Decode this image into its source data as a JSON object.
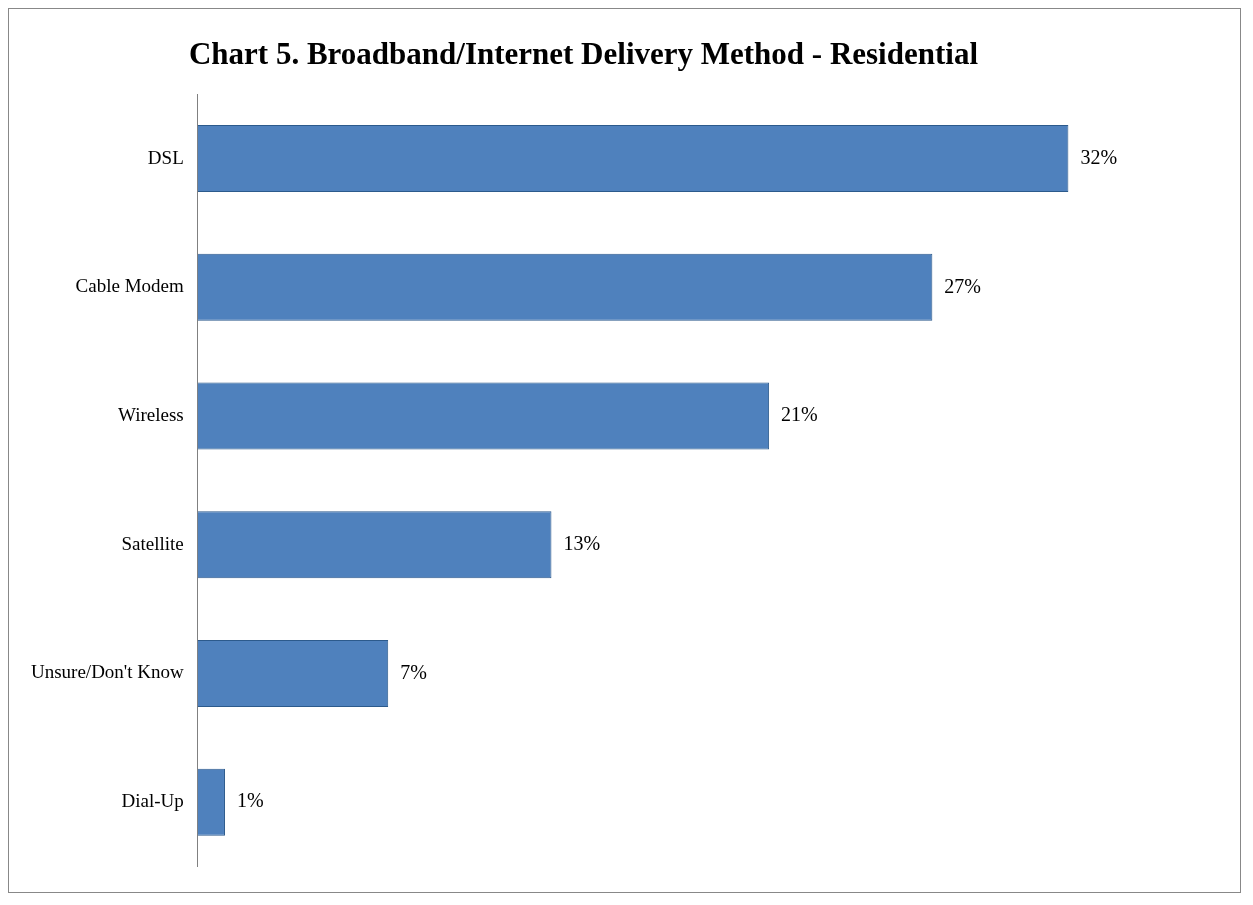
{
  "chart_data": {
    "type": "bar",
    "orientation": "horizontal",
    "title": "Chart 5. Broadband/Internet Delivery Method - Residential",
    "categories": [
      "DSL",
      "Cable Modem",
      "Wireless",
      "Satellite",
      "Unsure/Don't Know",
      "Dial-Up"
    ],
    "values": [
      32,
      27,
      21,
      13,
      7,
      1
    ],
    "value_labels": [
      "32%",
      "27%",
      "21%",
      "13%",
      "7%",
      "1%"
    ],
    "color": "#4f81bd",
    "legend": false
  }
}
